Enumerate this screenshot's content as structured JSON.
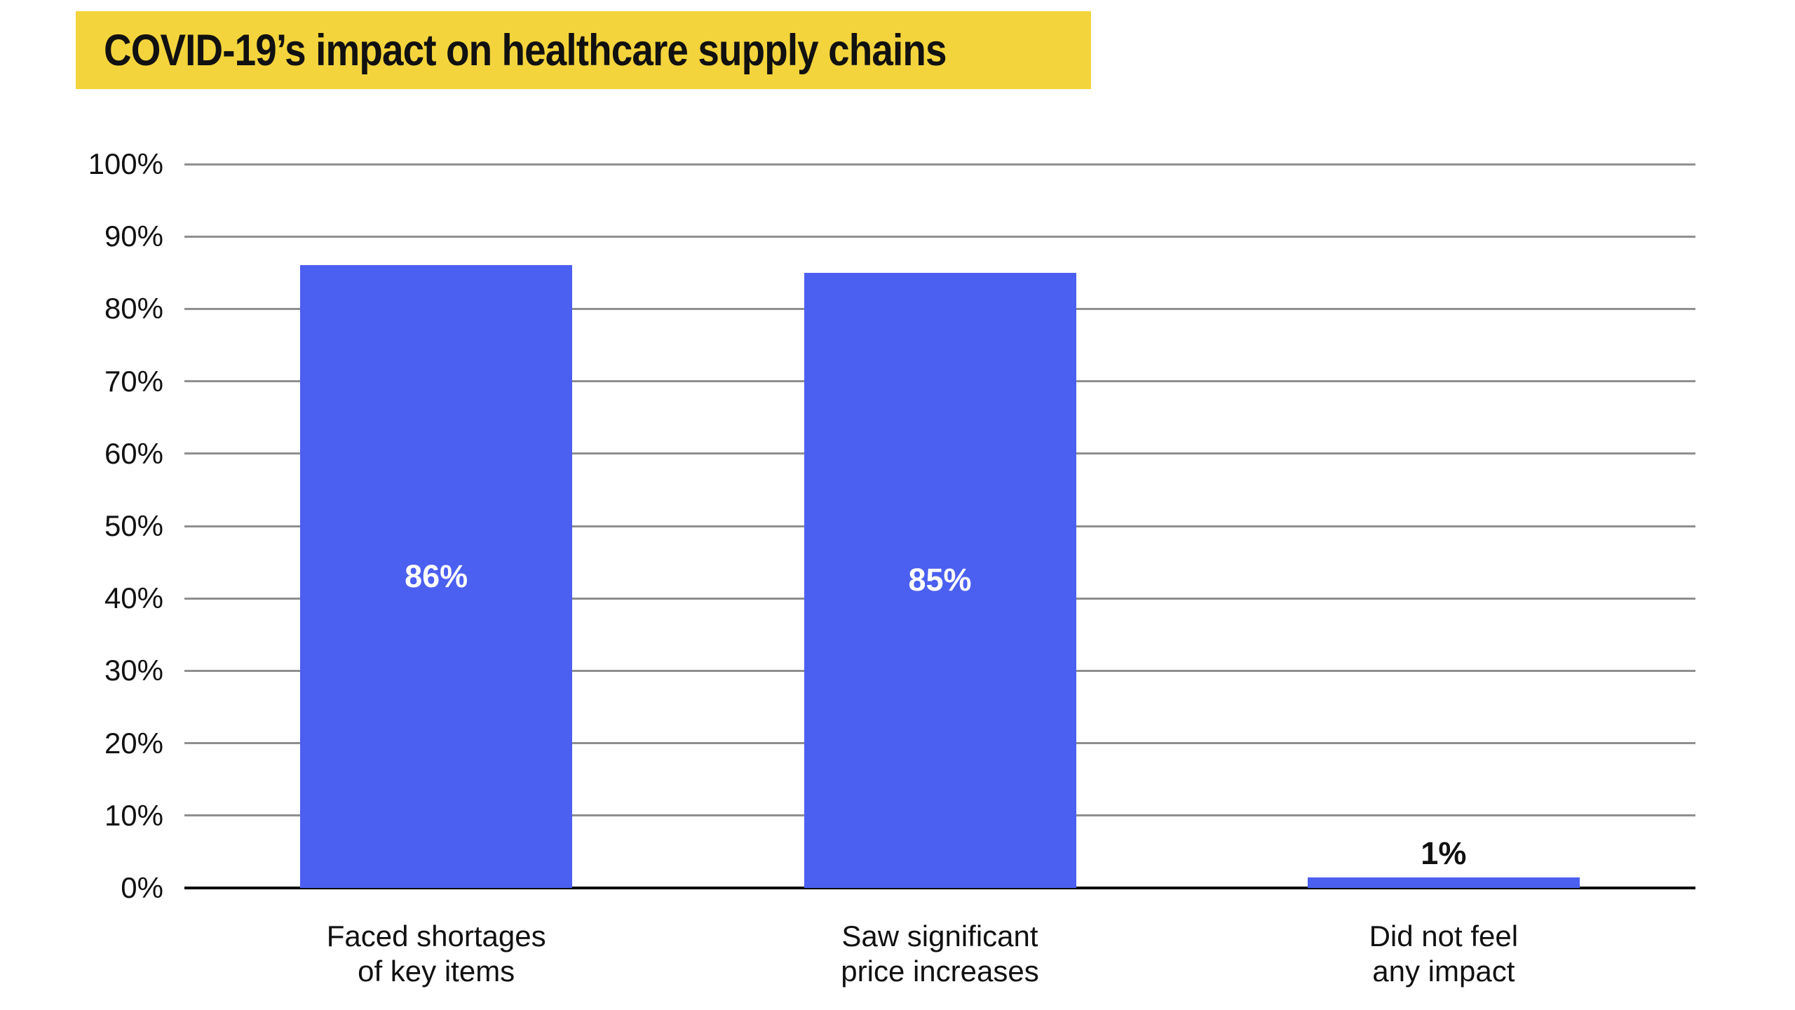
{
  "title": "COVID-19’s impact on healthcare supply chains",
  "chart_data": {
    "type": "bar",
    "title": "COVID-19’s impact on healthcare supply chains",
    "categories": [
      "Faced shortages\nof key items",
      "Saw significant\nprice increases",
      "Did not feel\nany impact"
    ],
    "values": [
      86,
      85,
      1
    ],
    "bar_labels": [
      "86%",
      "85%",
      "1%"
    ],
    "bar_label_placement": [
      "inside-center",
      "inside-center",
      "above"
    ],
    "xlabel": "",
    "ylabel": "",
    "ylim": [
      0,
      100
    ],
    "y_tick_step": 10,
    "y_tick_labels": [
      "0%",
      "10%",
      "20%",
      "30%",
      "40%",
      "50%",
      "60%",
      "70%",
      "80%",
      "90%",
      "100%"
    ],
    "grid": true,
    "legend": false,
    "colors": {
      "bar": "#4B5FF0",
      "title_highlight": "#F4D43C",
      "grid_line": "#8F8F8F",
      "axis_line": "#0A0A0A",
      "label_inside": "#FFFFFF",
      "label_above": "#111111",
      "text": "#111111"
    }
  }
}
